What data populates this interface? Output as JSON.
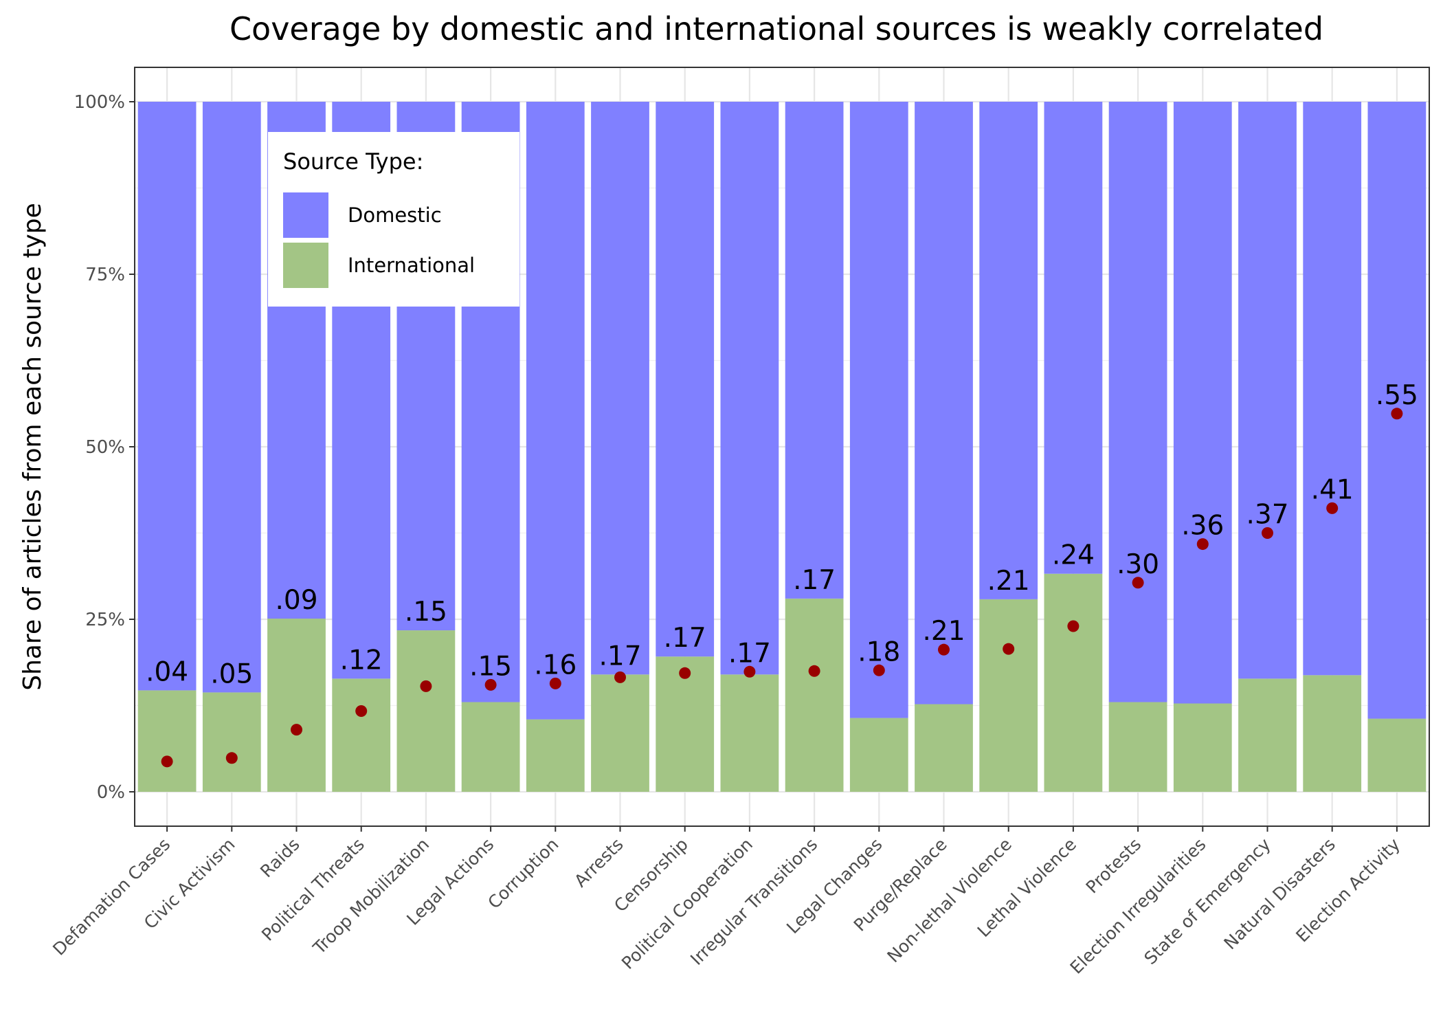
{
  "chart_data": {
    "type": "bar",
    "subtype": "stacked-100",
    "title": "Coverage by domestic and international sources is weakly correlated",
    "xlabel": "",
    "ylabel": "Share of articles from each source type",
    "ylim": [
      0,
      1
    ],
    "y_ticks": [
      {
        "value": 0,
        "label": "0%"
      },
      {
        "value": 0.25,
        "label": "25%"
      },
      {
        "value": 0.5,
        "label": "50%"
      },
      {
        "value": 0.75,
        "label": "75%"
      },
      {
        "value": 1,
        "label": "100%"
      }
    ],
    "grid": true,
    "legend": {
      "title": "Source Type:",
      "position": "top-left",
      "entries": [
        {
          "name": "Domestic",
          "color": "#8080ff"
        },
        {
          "name": "International",
          "color": "#a3c585"
        }
      ]
    },
    "categories": [
      "Defamation Cases",
      "Civic Activism",
      "Raids",
      "Political Threats",
      "Troop Mobilization",
      "Legal Actions",
      "Corruption",
      "Arrests",
      "Censorship",
      "Political Cooperation",
      "Irregular Transitions",
      "Legal Changes",
      "Purge/Replace",
      "Non-lethal Violence",
      "Lethal Violence",
      "Protests",
      "Election Irregularities",
      "State of Emergency",
      "Natural Disasters",
      "Election Activity"
    ],
    "series": [
      {
        "name": "International",
        "color": "#a3c585",
        "values": [
          0.147,
          0.144,
          0.251,
          0.164,
          0.234,
          0.13,
          0.105,
          0.17,
          0.196,
          0.17,
          0.28,
          0.107,
          0.127,
          0.279,
          0.316,
          0.13,
          0.128,
          0.164,
          0.169,
          0.106
        ]
      },
      {
        "name": "Domestic",
        "color": "#8080ff",
        "values": [
          0.853,
          0.856,
          0.749,
          0.836,
          0.766,
          0.87,
          0.895,
          0.83,
          0.804,
          0.83,
          0.72,
          0.893,
          0.873,
          0.721,
          0.684,
          0.87,
          0.872,
          0.836,
          0.831,
          0.894
        ]
      }
    ],
    "points": {
      "color": "#990000",
      "values": [
        0.044,
        0.049,
        0.09,
        0.117,
        0.153,
        0.155,
        0.157,
        0.166,
        0.172,
        0.174,
        0.175,
        0.176,
        0.206,
        0.207,
        0.24,
        0.303,
        0.359,
        0.375,
        0.411,
        0.548
      ],
      "labels": [
        ".04",
        ".05",
        ".09",
        ".12",
        ".15",
        ".15",
        ".16",
        ".17",
        ".17",
        ".17",
        ".17",
        ".18",
        ".21",
        ".21",
        ".24",
        ".30",
        ".36",
        ".37",
        ".41",
        ".55"
      ]
    }
  }
}
